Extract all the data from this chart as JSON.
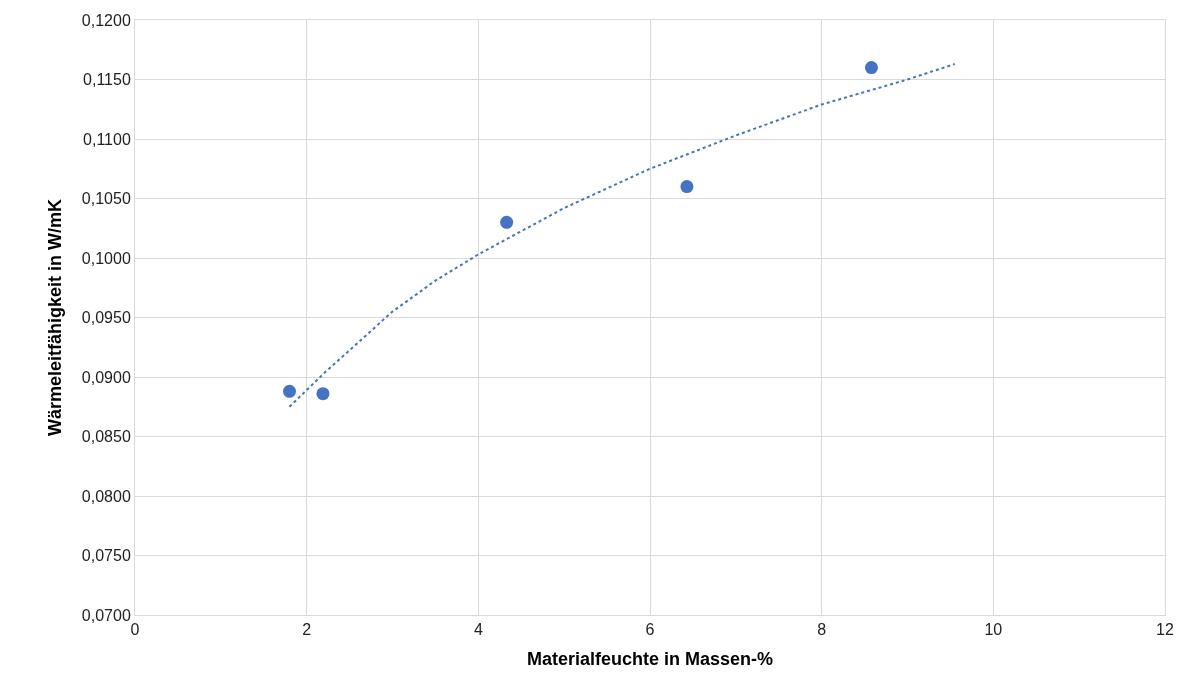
{
  "chart_data": {
    "type": "scatter",
    "xlabel": "Materialfeuchte in Massen-%",
    "ylabel": "Wärmeleitfähigkeit in W/mK",
    "xlim": [
      0,
      12
    ],
    "xticks": [
      0,
      2,
      4,
      6,
      8,
      10,
      12
    ],
    "ylim": [
      0.07,
      0.12
    ],
    "yticks": [
      {
        "value": 0.07,
        "label": "0,0700"
      },
      {
        "value": 0.075,
        "label": "0,0750"
      },
      {
        "value": 0.08,
        "label": "0,0800"
      },
      {
        "value": 0.085,
        "label": "0,0850"
      },
      {
        "value": 0.09,
        "label": "0,0900"
      },
      {
        "value": 0.095,
        "label": "0,0950"
      },
      {
        "value": 0.1,
        "label": "0,1000"
      },
      {
        "value": 0.105,
        "label": "0,1050"
      },
      {
        "value": 0.11,
        "label": "0,1100"
      },
      {
        "value": 0.115,
        "label": "0,1150"
      },
      {
        "value": 0.12,
        "label": "0,1200"
      }
    ],
    "grid": true,
    "series": [
      {
        "color": "#4472c4",
        "marker": "circle",
        "x": [
          1.8,
          2.19,
          4.33,
          6.43,
          8.58
        ],
        "values": [
          0.0888,
          0.0886,
          0.103,
          0.106,
          0.116
        ]
      },
      {
        "type": "line",
        "color": "#4472c4",
        "line_style": "dotted",
        "marker": "none",
        "x": [
          1.8,
          2.2,
          2.6,
          3,
          3.5,
          4,
          5,
          6,
          7,
          8,
          9,
          9.55
        ],
        "values": [
          0.0875,
          0.0903,
          0.0929,
          0.0955,
          0.0981,
          0.1003,
          0.1042,
          0.1075,
          0.1103,
          0.1129,
          0.115,
          0.1163
        ]
      }
    ]
  }
}
